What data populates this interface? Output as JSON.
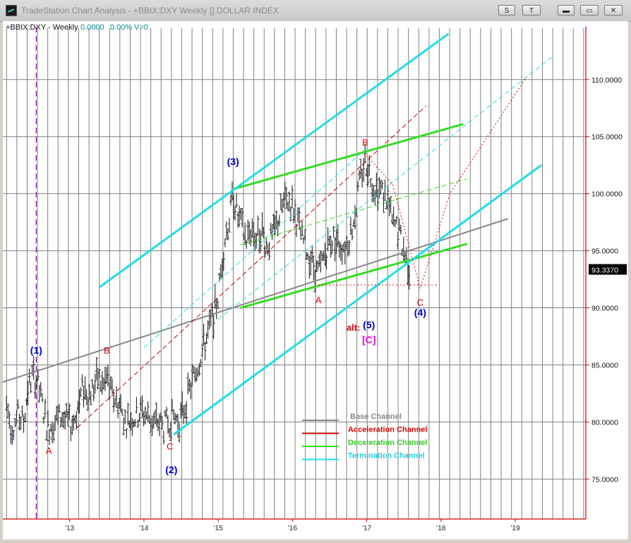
{
  "window": {
    "title": "TradeStation Chart Analysis - +BBIX:DXY Weekly [] DOLLAR INDEX",
    "buttons": {
      "s": "S",
      "t": "T",
      "minimize": "▬",
      "restore": "▭",
      "close": "✕"
    }
  },
  "header": {
    "symbol": "+BBIX:DXY - Weekly",
    "change": "0.0000",
    "pct": "0.00%",
    "volume": "V=0"
  },
  "colors": {
    "base": "#888888",
    "acceleration": "#cc0000",
    "deceleration": "#33dd22",
    "termination": "#22dde8",
    "wave_blue": "#0000cc",
    "wave_red": "#dd0000",
    "alt_magenta": "#ee00ee",
    "grid": "#808080",
    "axis": "#cc0000",
    "price": "#222222"
  },
  "chart_data": {
    "type": "line",
    "title": "",
    "xlabel": "",
    "ylabel": "",
    "x_ticks": [
      "'13",
      "'14",
      "'15",
      "'16",
      "'17",
      "'18",
      "'19"
    ],
    "y_ticks": [
      "75.0000",
      "80.0000",
      "85.0000",
      "90.0000",
      "95.0000",
      "100.0000",
      "105.0000",
      "110.0000"
    ],
    "ylim": [
      71.5,
      114
    ],
    "xlim": [
      2012.1,
      2019.95
    ],
    "grid": true,
    "last_price": "93.3370",
    "series": [
      {
        "values": [
          [
            2012.15,
            81.5
          ],
          [
            2012.22,
            79.5
          ],
          [
            2012.3,
            80.5
          ],
          [
            2012.38,
            80.0
          ],
          [
            2012.44,
            83.0
          ],
          [
            2012.5,
            84.0
          ],
          [
            2012.55,
            83.8
          ],
          [
            2012.63,
            81.5
          ],
          [
            2012.7,
            79.5
          ],
          [
            2012.78,
            80.0
          ],
          [
            2012.84,
            80.3
          ],
          [
            2012.9,
            80.5
          ],
          [
            2012.98,
            79.8
          ],
          [
            2013.05,
            80.0
          ],
          [
            2013.12,
            81.5
          ],
          [
            2013.18,
            83.0
          ],
          [
            2013.26,
            82.5
          ],
          [
            2013.32,
            83.0
          ],
          [
            2013.38,
            84.0
          ],
          [
            2013.45,
            83.0
          ],
          [
            2013.5,
            84.0
          ],
          [
            2013.55,
            82.5
          ],
          [
            2013.62,
            82.0
          ],
          [
            2013.68,
            81.5
          ],
          [
            2013.75,
            80.0
          ],
          [
            2013.82,
            80.3
          ],
          [
            2013.9,
            80.5
          ],
          [
            2013.97,
            81.0
          ],
          [
            2014.05,
            80.5
          ],
          [
            2014.12,
            80.0
          ],
          [
            2014.2,
            80.0
          ],
          [
            2014.26,
            79.5
          ],
          [
            2014.32,
            80.0
          ],
          [
            2014.4,
            80.5
          ],
          [
            2014.47,
            80.0
          ],
          [
            2014.53,
            81.0
          ],
          [
            2014.58,
            82.0
          ],
          [
            2014.62,
            83.0
          ],
          [
            2014.7,
            84.5
          ],
          [
            2014.77,
            86.0
          ],
          [
            2014.85,
            87.5
          ],
          [
            2014.92,
            89.0
          ],
          [
            2015.0,
            91.0
          ],
          [
            2015.05,
            94.0
          ],
          [
            2015.1,
            96.5
          ],
          [
            2015.16,
            98.0
          ],
          [
            2015.2,
            100.0
          ],
          [
            2015.26,
            98.0
          ],
          [
            2015.32,
            97.0
          ],
          [
            2015.38,
            96.0
          ],
          [
            2015.45,
            97.0
          ],
          [
            2015.52,
            96.0
          ],
          [
            2015.58,
            97.0
          ],
          [
            2015.65,
            95.5
          ],
          [
            2015.72,
            96.0
          ],
          [
            2015.8,
            97.5
          ],
          [
            2015.87,
            99.0
          ],
          [
            2015.93,
            99.5
          ],
          [
            2016.0,
            99.0
          ],
          [
            2016.07,
            97.5
          ],
          [
            2016.13,
            96.0
          ],
          [
            2016.2,
            95.0
          ],
          [
            2016.26,
            94.0
          ],
          [
            2016.33,
            93.0
          ],
          [
            2016.38,
            93.5
          ],
          [
            2016.45,
            95.0
          ],
          [
            2016.52,
            96.0
          ],
          [
            2016.58,
            96.0
          ],
          [
            2016.65,
            95.5
          ],
          [
            2016.72,
            95.5
          ],
          [
            2016.8,
            97.0
          ],
          [
            2016.86,
            99.0
          ],
          [
            2016.92,
            101.5
          ],
          [
            2016.98,
            103.0
          ],
          [
            2017.04,
            102.0
          ],
          [
            2017.1,
            100.5
          ],
          [
            2017.16,
            100.5
          ],
          [
            2017.22,
            100.0
          ],
          [
            2017.28,
            99.5
          ],
          [
            2017.34,
            97.5
          ],
          [
            2017.4,
            97.0
          ],
          [
            2017.46,
            96.0
          ],
          [
            2017.52,
            94.5
          ],
          [
            2017.58,
            93.3
          ]
        ]
      }
    ],
    "channel_lines": [
      {
        "channel": "base",
        "style": "solid",
        "from": [
          2012.1,
          83.5
        ],
        "to": [
          2018.9,
          97.8
        ]
      },
      {
        "channel": "acceleration",
        "style": "dashed",
        "from": [
          2013.1,
          79.5
        ],
        "to": [
          2017.8,
          107.7
        ]
      },
      {
        "channel": "deceleration",
        "style": "solid",
        "from": [
          2015.2,
          100.4
        ],
        "to": [
          2018.3,
          106.1
        ]
      },
      {
        "channel": "deceleration",
        "style": "solid",
        "from": [
          2015.3,
          90.0
        ],
        "to": [
          2018.35,
          95.6
        ]
      },
      {
        "channel": "deceleration",
        "style": "dashed",
        "from": [
          2015.3,
          95.5
        ],
        "to": [
          2018.35,
          101.3
        ]
      },
      {
        "channel": "termination",
        "style": "solid",
        "from": [
          2013.4,
          91.8
        ],
        "to": [
          2018.1,
          114.0
        ]
      },
      {
        "channel": "termination",
        "style": "solid",
        "from": [
          2014.4,
          78.9
        ],
        "to": [
          2019.35,
          102.5
        ]
      },
      {
        "channel": "termination",
        "style": "dashed",
        "from": [
          2015.0,
          89.0
        ],
        "to": [
          2019.5,
          112.0
        ]
      },
      {
        "channel": "termination",
        "style": "dashed",
        "from": [
          2014.0,
          86.5
        ],
        "to": [
          2017.0,
          104.0
        ]
      }
    ],
    "projections": [
      {
        "style": "dotted",
        "points": [
          [
            2016.35,
            92.0
          ],
          [
            2017.95,
            92.0
          ]
        ]
      },
      {
        "style": "dotted",
        "points": [
          [
            2017.0,
            103.3
          ],
          [
            2017.35,
            100.8
          ],
          [
            2017.72,
            91.7
          ],
          [
            2018.12,
            100.0
          ],
          [
            2019.15,
            110.2
          ]
        ]
      }
    ],
    "annotations": [
      {
        "label": "(1)",
        "x": 2012.55,
        "y": 86.0,
        "color": "blue"
      },
      {
        "label": "A",
        "x": 2012.72,
        "y": 77.2,
        "color": "red"
      },
      {
        "label": "B",
        "x": 2013.5,
        "y": 86.0,
        "color": "red"
      },
      {
        "label": "C",
        "x": 2014.35,
        "y": 77.6,
        "color": "red"
      },
      {
        "label": "(2)",
        "x": 2014.37,
        "y": 75.5,
        "color": "blue"
      },
      {
        "label": "(3)",
        "x": 2015.2,
        "y": 102.5,
        "color": "blue"
      },
      {
        "label": "A",
        "x": 2016.35,
        "y": 90.4,
        "color": "red"
      },
      {
        "label": "B",
        "x": 2016.98,
        "y": 104.2,
        "color": "red"
      },
      {
        "label": "alt:",
        "x": 2016.82,
        "y": 88.0,
        "color": "red"
      },
      {
        "label": "(5)",
        "x": 2017.03,
        "y": 88.2,
        "color": "blue"
      },
      {
        "label": "[C]",
        "x": 2017.03,
        "y": 86.9,
        "color": "magenta"
      },
      {
        "label": "C",
        "x": 2017.72,
        "y": 90.2,
        "color": "red"
      },
      {
        "label": "(4)",
        "x": 2017.72,
        "y": 89.3,
        "color": "blue"
      }
    ],
    "legend": {
      "position": "bottom-center",
      "entries": [
        "Base Channel",
        "Acceleration Channel",
        "Deceleration Channel",
        "Termination Channel"
      ]
    }
  }
}
